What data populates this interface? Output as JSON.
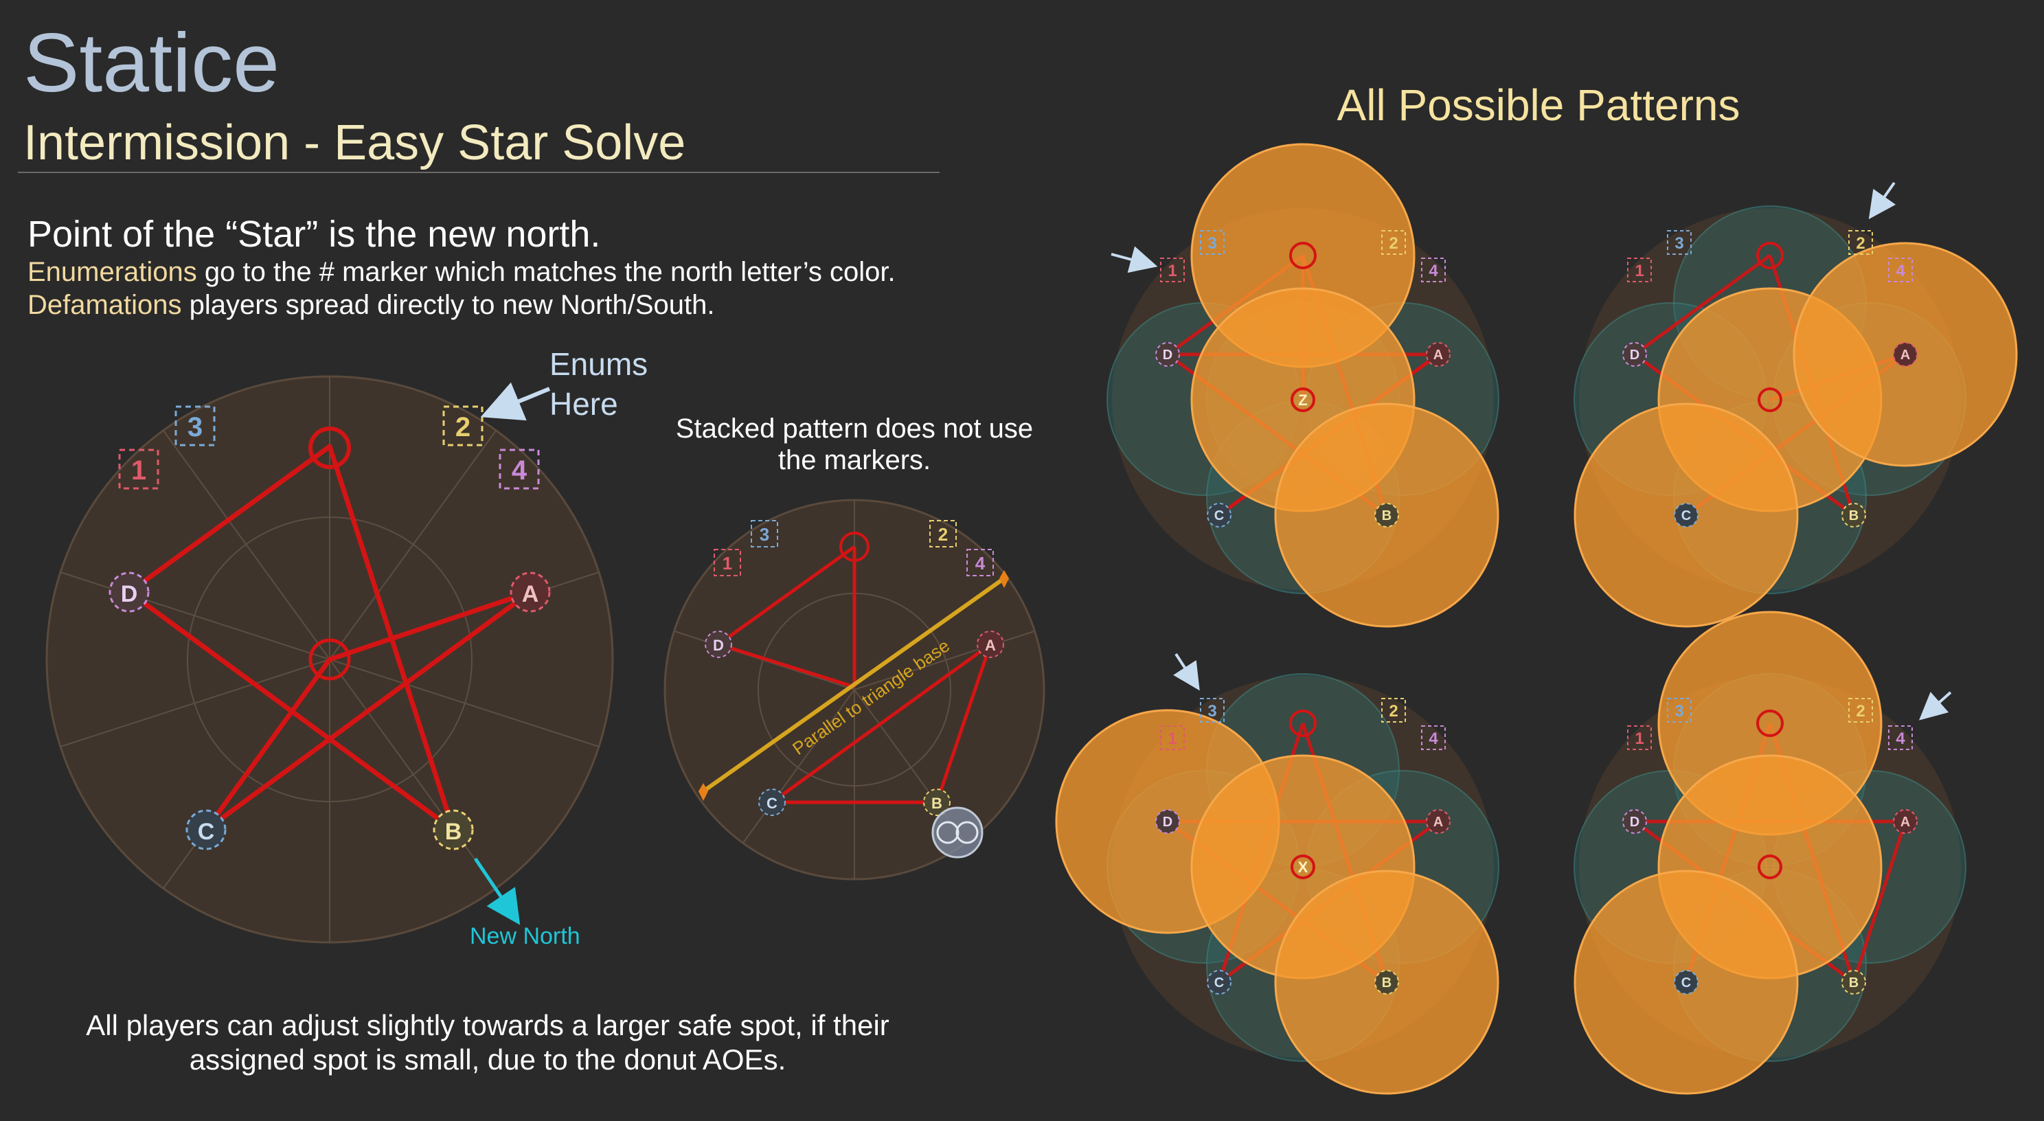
{
  "header": {
    "title": "Statice",
    "subtitle": "Intermission - Easy Star Solve"
  },
  "instructions": {
    "headline": "Point of the “Star” is the new north.",
    "enum_term": "Enumerations",
    "enum_text": " go to the # marker which matches the north letter’s color.",
    "defam_term": "Defamations",
    "defam_text": " players spread directly to new North/South."
  },
  "main_diagram": {
    "enums_label_line1": "Enums",
    "enums_label_line2": "Here",
    "new_north_label": "New North"
  },
  "stacked_diagram": {
    "caption_line1": "Stacked pattern does not use",
    "caption_line2": "the markers.",
    "parallel_label": "Parallel to triangle base"
  },
  "patterns": {
    "title": "All Possible Patterns",
    "center_letters": [
      "Z",
      "X"
    ]
  },
  "markers": {
    "numbers": [
      "1",
      "2",
      "3",
      "4"
    ],
    "letters": [
      "A",
      "B",
      "C",
      "D"
    ]
  },
  "footer": {
    "line1": "All players can adjust slightly towards a larger safe spot, if their",
    "line2": "assigned spot is small, due to the donut AOEs."
  },
  "colors": {
    "background": "#2a2a2a",
    "arena": "#3f342b",
    "star_line": "#d41414",
    "defamation": "#f5982e",
    "donut": "#2f6c6a",
    "marker_1": "#e05a6a",
    "marker_2": "#e8d070",
    "marker_3": "#7aaad8",
    "marker_4": "#c98ad8",
    "new_north": "#1fc6d8",
    "parallel_line": "#d7a51f"
  }
}
